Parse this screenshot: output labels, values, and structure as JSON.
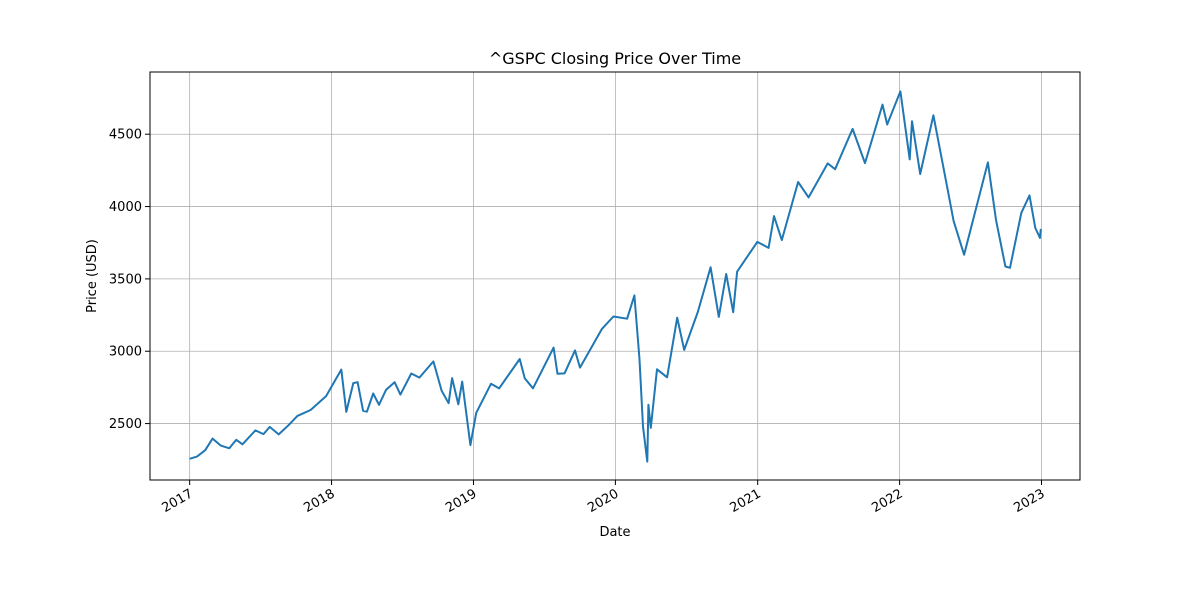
{
  "chart_data": {
    "type": "line",
    "title": "^GSPC Closing Price Over Time",
    "xlabel": "Date",
    "ylabel": "Price (USD)",
    "grid": true,
    "xlim": [
      "2016-09-21",
      "2023-04-10"
    ],
    "ylim": [
      2110,
      4930
    ],
    "x_ticks": [
      {
        "date": "2017-01-01",
        "label": "2017"
      },
      {
        "date": "2018-01-01",
        "label": "2018"
      },
      {
        "date": "2019-01-01",
        "label": "2019"
      },
      {
        "date": "2020-01-01",
        "label": "2020"
      },
      {
        "date": "2021-01-01",
        "label": "2021"
      },
      {
        "date": "2022-01-01",
        "label": "2022"
      },
      {
        "date": "2023-01-01",
        "label": "2023"
      }
    ],
    "y_ticks": [
      {
        "value": 2500,
        "label": "2500"
      },
      {
        "value": 3000,
        "label": "3000"
      },
      {
        "value": 3500,
        "label": "3500"
      },
      {
        "value": 4000,
        "label": "4000"
      },
      {
        "value": 4500,
        "label": "4500"
      }
    ],
    "colors": {
      "series": "#1f77b4",
      "grid": "#b0b0b0",
      "axis": "#000000"
    },
    "series": [
      {
        "name": "",
        "points": [
          [
            "2017-01-03",
            2258
          ],
          [
            "2017-01-20",
            2272
          ],
          [
            "2017-02-10",
            2316
          ],
          [
            "2017-03-01",
            2396
          ],
          [
            "2017-03-22",
            2348
          ],
          [
            "2017-04-13",
            2329
          ],
          [
            "2017-05-01",
            2388
          ],
          [
            "2017-05-17",
            2357
          ],
          [
            "2017-06-19",
            2453
          ],
          [
            "2017-07-10",
            2427
          ],
          [
            "2017-07-26",
            2477
          ],
          [
            "2017-08-18",
            2425
          ],
          [
            "2017-09-12",
            2488
          ],
          [
            "2017-10-05",
            2553
          ],
          [
            "2017-11-08",
            2594
          ],
          [
            "2017-12-18",
            2690
          ],
          [
            "2018-01-26",
            2873
          ],
          [
            "2018-02-08",
            2581
          ],
          [
            "2018-02-26",
            2780
          ],
          [
            "2018-03-09",
            2786
          ],
          [
            "2018-03-23",
            2588
          ],
          [
            "2018-04-02",
            2582
          ],
          [
            "2018-04-18",
            2708
          ],
          [
            "2018-05-03",
            2630
          ],
          [
            "2018-05-21",
            2733
          ],
          [
            "2018-06-12",
            2786
          ],
          [
            "2018-06-27",
            2700
          ],
          [
            "2018-07-25",
            2846
          ],
          [
            "2018-08-15",
            2818
          ],
          [
            "2018-09-20",
            2930
          ],
          [
            "2018-10-11",
            2728
          ],
          [
            "2018-10-29",
            2641
          ],
          [
            "2018-11-07",
            2814
          ],
          [
            "2018-11-23",
            2633
          ],
          [
            "2018-12-03",
            2790
          ],
          [
            "2018-12-24",
            2351
          ],
          [
            "2019-01-08",
            2574
          ],
          [
            "2019-02-15",
            2775
          ],
          [
            "2019-03-08",
            2743
          ],
          [
            "2019-04-30",
            2946
          ],
          [
            "2019-05-13",
            2812
          ],
          [
            "2019-06-03",
            2744
          ],
          [
            "2019-07-26",
            3025
          ],
          [
            "2019-08-05",
            2844
          ],
          [
            "2019-08-23",
            2847
          ],
          [
            "2019-09-19",
            3006
          ],
          [
            "2019-10-02",
            2887
          ],
          [
            "2019-11-27",
            3153
          ],
          [
            "2019-12-27",
            3240
          ],
          [
            "2020-01-31",
            3225
          ],
          [
            "2020-02-19",
            3386
          ],
          [
            "2020-03-03",
            2944
          ],
          [
            "2020-03-12",
            2480
          ],
          [
            "2020-03-23",
            2237
          ],
          [
            "2020-03-26",
            2630
          ],
          [
            "2020-04-01",
            2470
          ],
          [
            "2020-04-17",
            2875
          ],
          [
            "2020-05-13",
            2820
          ],
          [
            "2020-06-08",
            3232
          ],
          [
            "2020-06-26",
            3009
          ],
          [
            "2020-07-31",
            3271
          ],
          [
            "2020-09-02",
            3580
          ],
          [
            "2020-09-23",
            3237
          ],
          [
            "2020-10-12",
            3534
          ],
          [
            "2020-10-30",
            3270
          ],
          [
            "2020-11-09",
            3550
          ],
          [
            "2020-12-31",
            3756
          ],
          [
            "2021-01-29",
            3714
          ],
          [
            "2021-02-12",
            3934
          ],
          [
            "2021-03-04",
            3768
          ],
          [
            "2021-04-15",
            4170
          ],
          [
            "2021-05-12",
            4063
          ],
          [
            "2021-06-30",
            4298
          ],
          [
            "2021-07-19",
            4258
          ],
          [
            "2021-09-02",
            4537
          ],
          [
            "2021-10-04",
            4300
          ],
          [
            "2021-11-18",
            4705
          ],
          [
            "2021-11-30",
            4567
          ],
          [
            "2022-01-03",
            4796
          ],
          [
            "2022-01-27",
            4326
          ],
          [
            "2022-02-02",
            4589
          ],
          [
            "2022-02-23",
            4225
          ],
          [
            "2022-03-29",
            4631
          ],
          [
            "2022-05-02",
            4155
          ],
          [
            "2022-05-20",
            3901
          ],
          [
            "2022-06-16",
            3667
          ],
          [
            "2022-08-16",
            4305
          ],
          [
            "2022-09-06",
            3908
          ],
          [
            "2022-09-30",
            3586
          ],
          [
            "2022-10-12",
            3577
          ],
          [
            "2022-11-10",
            3956
          ],
          [
            "2022-12-01",
            4077
          ],
          [
            "2022-12-16",
            3852
          ],
          [
            "2022-12-28",
            3783
          ],
          [
            "2022-12-30",
            3840
          ]
        ]
      }
    ]
  }
}
